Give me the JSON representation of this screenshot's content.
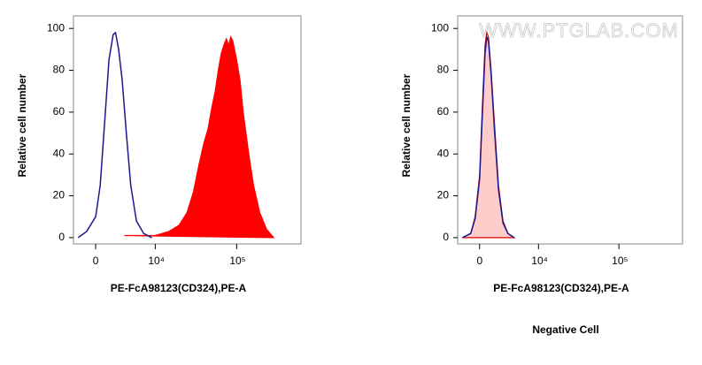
{
  "chart_data": [
    {
      "type": "histogram-overlay",
      "xlabel": "PE-FcA98123(CD324),PE-A",
      "ylabel": "Relative cell number",
      "xscale": "biexponential",
      "xlim": [
        -2600,
        600000
      ],
      "ylim": [
        -3,
        106
      ],
      "xticks": [
        0,
        {
          "value": 10000,
          "label": "10⁴"
        },
        {
          "value": 100000,
          "label": "10⁵"
        }
      ],
      "yticks": [
        0,
        20,
        40,
        60,
        80,
        100
      ],
      "series": [
        {
          "color": "#ff0000",
          "fill": "#ff0000",
          "x": [
            3500,
            6000,
            10000,
            15000,
            20000,
            25000,
            30000,
            35000,
            40000,
            45000,
            50000,
            55000,
            60000,
            65000,
            70000,
            75000,
            80000,
            85000,
            90000,
            100000,
            110000,
            120000,
            140000,
            160000,
            190000,
            230000,
            280000
          ],
          "values": [
            1,
            1,
            1,
            3,
            6,
            12,
            22,
            35,
            45,
            52,
            62,
            70,
            80,
            88,
            92,
            95,
            92,
            96,
            94,
            85,
            75,
            60,
            40,
            25,
            12,
            4,
            0
          ]
        },
        {
          "color": "#1a1a8c",
          "x": [
            -2000,
            -1000,
            0,
            500,
            1000,
            1500,
            2000,
            2300,
            2700,
            3200,
            3800,
            4500,
            5500,
            7000,
            9000
          ],
          "values": [
            0,
            3,
            10,
            25,
            55,
            85,
            97,
            98,
            90,
            75,
            50,
            25,
            8,
            2,
            0
          ]
        }
      ]
    },
    {
      "type": "histogram-overlay",
      "xlabel": "PE-FcA98123(CD324),PE-A",
      "ylabel": "Relative cell number",
      "subtitle": "Negative Cell",
      "watermark": "WWW.PTGLAB.COM",
      "xscale": "biexponential",
      "xlim": [
        -2600,
        600000
      ],
      "ylim": [
        -3,
        106
      ],
      "xticks": [
        0,
        {
          "value": 10000,
          "label": "10⁴"
        },
        {
          "value": 100000,
          "label": "10⁵"
        }
      ],
      "yticks": [
        0,
        20,
        40,
        60,
        80,
        100
      ],
      "series": [
        {
          "color": "#e00000",
          "fill": "#ffcccc",
          "x": [
            -2000,
            -1000,
            -500,
            0,
            300,
            600,
            800,
            1000,
            1300,
            1700,
            2200,
            2800,
            3500,
            4500
          ],
          "values": [
            0,
            2,
            10,
            30,
            62,
            92,
            98,
            96,
            80,
            55,
            25,
            8,
            2,
            0
          ]
        },
        {
          "color": "#1a1a8c",
          "x": [
            -2000,
            -1000,
            -500,
            0,
            300,
            600,
            800,
            1000,
            1300,
            1700,
            2200,
            2800,
            3500,
            4500
          ],
          "values": [
            0,
            2,
            9,
            28,
            58,
            88,
            96,
            94,
            78,
            52,
            23,
            7,
            2,
            0
          ]
        }
      ]
    }
  ]
}
